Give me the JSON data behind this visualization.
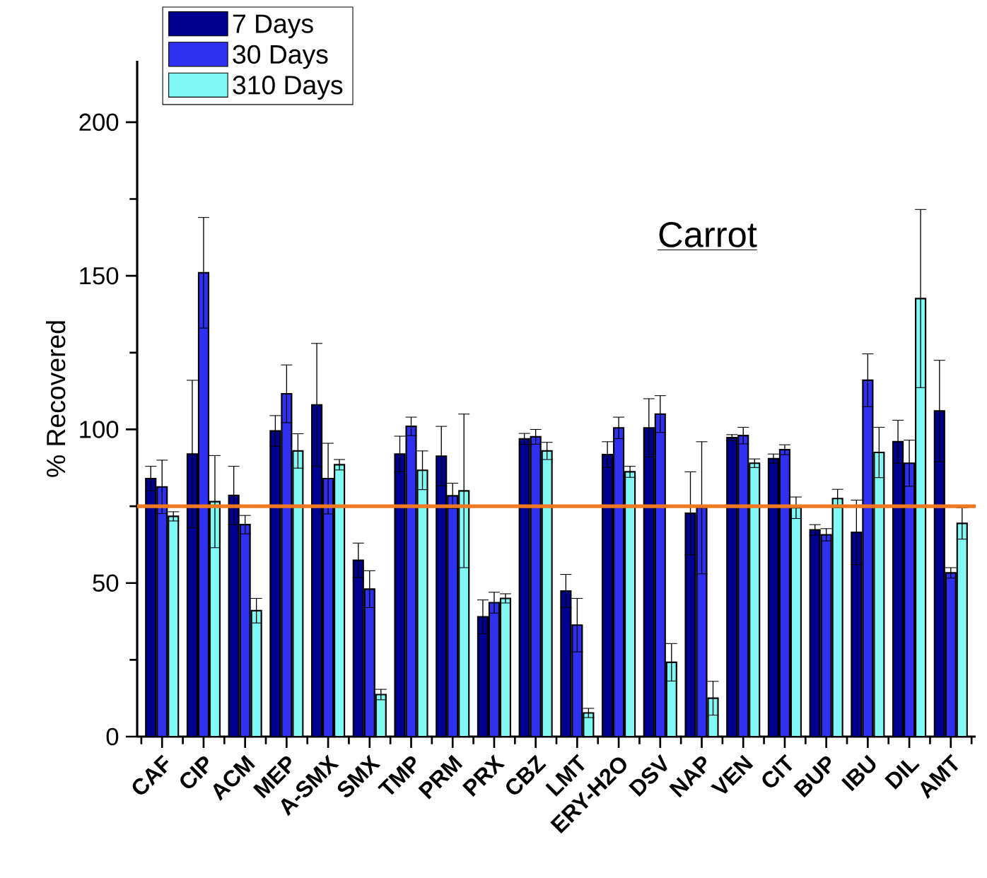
{
  "chart_data": {
    "type": "bar",
    "ylabel": "% Recovered",
    "annotations": [
      "Carrot"
    ],
    "categories": [
      "CAF",
      "CIP",
      "ACM",
      "MEP",
      "A-SMX",
      "SMX",
      "TMP",
      "PRM",
      "PRX",
      "CBZ",
      "LMT",
      "ERY-H2O",
      "DSV",
      "NAP",
      "VEN",
      "CIT",
      "BUP",
      "IBU",
      "DIL",
      "AMT"
    ],
    "series": [
      {
        "name": "7 Days",
        "color": "#000090",
        "values": [
          84,
          92,
          78.5,
          99.5,
          108,
          57.4,
          92,
          91.3,
          39,
          96.9,
          47.4,
          91.8,
          100.5,
          72.7,
          97.3,
          90.5,
          67.3,
          66.5,
          96,
          106
        ],
        "errors": [
          4,
          24,
          9.5,
          5,
          20,
          5.6,
          5.8,
          9.7,
          5.5,
          1.8,
          5.4,
          4.2,
          9.5,
          13.5,
          1,
          1.5,
          1.7,
          10.5,
          7,
          16.5
        ]
      },
      {
        "name": "30 Days",
        "color": "#3030f0",
        "values": [
          81.3,
          151,
          69,
          111.6,
          84,
          48,
          101,
          78.4,
          43.6,
          97.6,
          36.3,
          100.5,
          105,
          74.5,
          98,
          93.4,
          65.7,
          116,
          89,
          53.3
        ],
        "errors": [
          8.7,
          18,
          3,
          9.4,
          11.5,
          6,
          3,
          4.1,
          3.4,
          2.4,
          8.7,
          3.5,
          6,
          21.5,
          2.7,
          1.6,
          2,
          8.6,
          7.5,
          1.7
        ]
      },
      {
        "name": "310 Days",
        "color": "#80f8f4",
        "values": [
          71.7,
          76.5,
          41,
          93,
          88.5,
          13.7,
          86.7,
          80,
          45,
          93,
          7.7,
          86.2,
          24.2,
          12.5,
          89,
          74.5,
          77.5,
          92.5,
          142.6,
          69.4
        ],
        "errors": [
          1.5,
          15,
          4,
          5.6,
          1.7,
          1.7,
          6.3,
          25,
          1.5,
          2.8,
          1.5,
          1.8,
          6.1,
          5.5,
          1.4,
          3.5,
          3,
          8.2,
          29,
          5.1
        ]
      }
    ],
    "ylim": [
      0,
      220
    ],
    "yticks": [
      0,
      50,
      100,
      150,
      200
    ],
    "ref_lines": [
      {
        "axis": "y",
        "value": 75,
        "color": "#f07820"
      }
    ],
    "legend": "top left"
  }
}
